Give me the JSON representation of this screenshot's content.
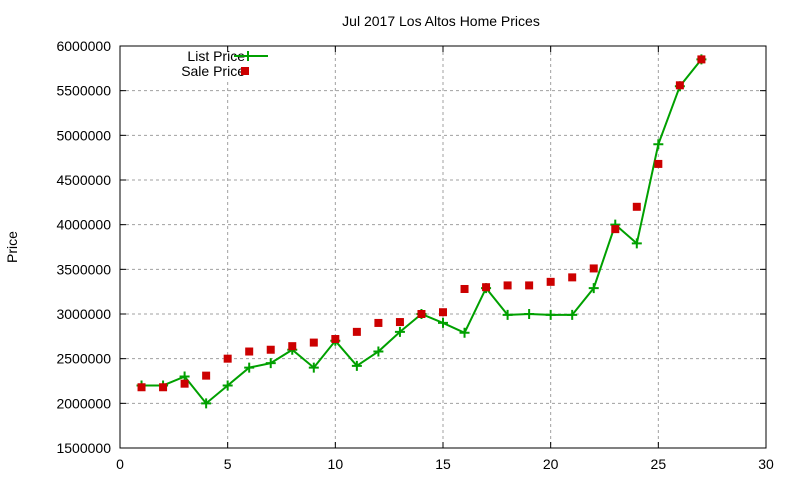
{
  "chart_data": {
    "type": "line",
    "title": "Jul 2017 Los Altos Home Prices",
    "xlabel": "",
    "ylabel": "Price",
    "xlim": [
      0,
      30
    ],
    "ylim": [
      1500000,
      6000000
    ],
    "xticks": [
      0,
      5,
      10,
      15,
      20,
      25,
      30
    ],
    "yticks": [
      1500000,
      2000000,
      2500000,
      3000000,
      3500000,
      4000000,
      4500000,
      5000000,
      5500000,
      6000000
    ],
    "grid": true,
    "legend_position": "top-left",
    "x": [
      1,
      2,
      3,
      4,
      5,
      6,
      7,
      8,
      9,
      10,
      11,
      12,
      13,
      14,
      15,
      16,
      17,
      18,
      19,
      20,
      21,
      22,
      23,
      24,
      25,
      26,
      27
    ],
    "series": [
      {
        "name": "List Price",
        "style": "linespoints",
        "color": "#00a000",
        "values": [
          2200000,
          2200000,
          2300000,
          2000000,
          2200000,
          2400000,
          2450000,
          2600000,
          2400000,
          2700000,
          2420000,
          2580000,
          2800000,
          3000000,
          2900000,
          2790000,
          3290000,
          2990000,
          3000000,
          2990000,
          2990000,
          3290000,
          4000000,
          3790000,
          4900000,
          5550000,
          5850000
        ]
      },
      {
        "name": "Sale Price",
        "style": "points",
        "color": "#cc0000",
        "values": [
          2180000,
          2180000,
          2220000,
          2310000,
          2500000,
          2580000,
          2600000,
          2640000,
          2680000,
          2720000,
          2800000,
          2900000,
          2910000,
          3000000,
          3020000,
          3280000,
          3300000,
          3320000,
          3320000,
          3360000,
          3410000,
          3510000,
          3950000,
          4200000,
          4680000,
          5560000,
          5850000
        ]
      }
    ]
  }
}
